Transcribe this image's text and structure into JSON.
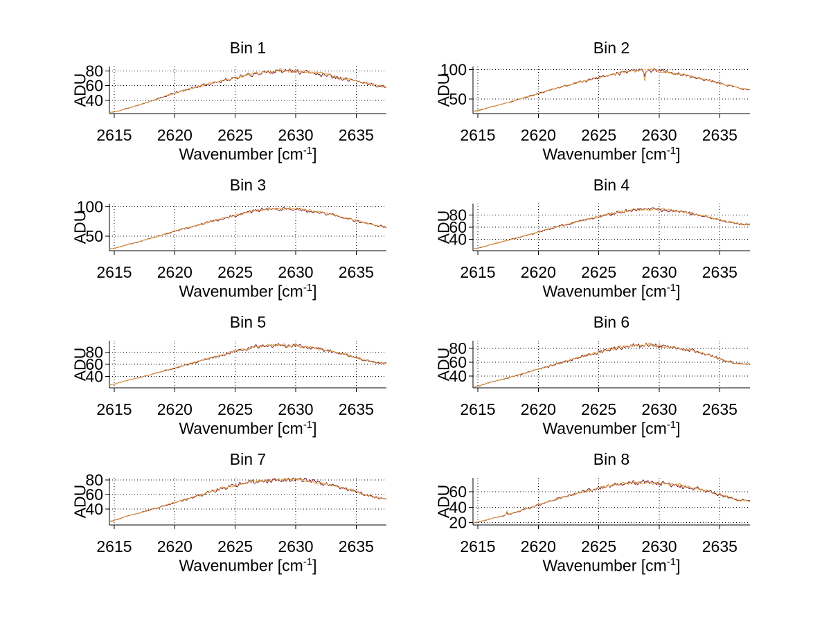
{
  "axis_labels": {
    "y": "ADU",
    "x_base": "Wavenumber [cm",
    "x_sup": "-1",
    "x_close": "]"
  },
  "style": {
    "background": "#ffffff",
    "text_color": "#000000",
    "axis_color": "#000000",
    "grid_color": "#000000",
    "trace_orange": "#e09a38",
    "trace_dark": "#7a2235"
  },
  "chart_data": [
    {
      "title": "Bin 1",
      "type": "line",
      "xlabel": "Wavenumber [cm-1]",
      "ylabel": "ADU",
      "xlim": [
        2614.6,
        2637.5
      ],
      "ylim": [
        22,
        86
      ],
      "x_ticks": [
        2615,
        2620,
        2625,
        2630,
        2635
      ],
      "y_ticks": [
        40,
        60,
        80
      ],
      "grid": true,
      "points": [
        [
          2614.6,
          23.5
        ],
        [
          2616,
          29
        ],
        [
          2618,
          39
        ],
        [
          2620,
          50
        ],
        [
          2622,
          59
        ],
        [
          2624,
          67
        ],
        [
          2626,
          74
        ],
        [
          2627.5,
          78.5
        ],
        [
          2629,
          80
        ],
        [
          2630.5,
          79
        ],
        [
          2632,
          76
        ],
        [
          2634,
          70
        ],
        [
          2636,
          63
        ],
        [
          2637.4,
          58.5
        ]
      ],
      "blips": []
    },
    {
      "title": "Bin 2",
      "type": "line",
      "xlabel": "Wavenumber [cm-1]",
      "ylabel": "ADU",
      "xlim": [
        2614.6,
        2637.5
      ],
      "ylim": [
        25,
        105
      ],
      "x_ticks": [
        2615,
        2620,
        2625,
        2630,
        2635
      ],
      "y_ticks": [
        50,
        100
      ],
      "grid": true,
      "points": [
        [
          2614.6,
          29
        ],
        [
          2616,
          36
        ],
        [
          2618,
          47
        ],
        [
          2620,
          59
        ],
        [
          2622,
          71
        ],
        [
          2624,
          81
        ],
        [
          2626,
          91
        ],
        [
          2627.5,
          96
        ],
        [
          2629,
          98.5
        ],
        [
          2630.5,
          96
        ],
        [
          2632,
          91
        ],
        [
          2634,
          82
        ],
        [
          2636,
          72
        ],
        [
          2637.4,
          66
        ]
      ],
      "blips": [
        {
          "x": 2628.8,
          "amp": -19
        }
      ]
    },
    {
      "title": "Bin 3",
      "type": "line",
      "xlabel": "Wavenumber [cm-1]",
      "ylabel": "ADU",
      "xlim": [
        2614.6,
        2637.5
      ],
      "ylim": [
        25,
        105
      ],
      "x_ticks": [
        2615,
        2620,
        2625,
        2630,
        2635
      ],
      "y_ticks": [
        50,
        100
      ],
      "grid": true,
      "points": [
        [
          2614.6,
          28
        ],
        [
          2616,
          35
        ],
        [
          2618,
          46
        ],
        [
          2620,
          58
        ],
        [
          2622,
          69
        ],
        [
          2624,
          80
        ],
        [
          2626,
          90
        ],
        [
          2627.5,
          95
        ],
        [
          2629,
          97
        ],
        [
          2630.5,
          95
        ],
        [
          2632,
          90
        ],
        [
          2634,
          81
        ],
        [
          2636,
          71
        ],
        [
          2637.4,
          66
        ]
      ],
      "blips": []
    },
    {
      "title": "Bin 4",
      "type": "line",
      "xlabel": "Wavenumber [cm-1]",
      "ylabel": "ADU",
      "xlim": [
        2614.6,
        2637.5
      ],
      "ylim": [
        21,
        99
      ],
      "x_ticks": [
        2615,
        2620,
        2625,
        2630,
        2635
      ],
      "y_ticks": [
        40,
        60,
        80
      ],
      "grid": true,
      "points": [
        [
          2614.6,
          24
        ],
        [
          2616,
          31
        ],
        [
          2618,
          41
        ],
        [
          2620,
          52
        ],
        [
          2622,
          63
        ],
        [
          2624,
          73
        ],
        [
          2626,
          82
        ],
        [
          2627.5,
          87
        ],
        [
          2629,
          90
        ],
        [
          2630.5,
          89
        ],
        [
          2632,
          85
        ],
        [
          2634,
          77
        ],
        [
          2636,
          68
        ],
        [
          2637.4,
          64
        ]
      ],
      "blips": []
    },
    {
      "title": "Bin 5",
      "type": "line",
      "xlabel": "Wavenumber [cm-1]",
      "ylabel": "ADU",
      "xlim": [
        2614.6,
        2637.5
      ],
      "ylim": [
        21,
        99
      ],
      "x_ticks": [
        2615,
        2620,
        2625,
        2630,
        2635
      ],
      "y_ticks": [
        40,
        60,
        80
      ],
      "grid": true,
      "points": [
        [
          2614.6,
          26
        ],
        [
          2616,
          33
        ],
        [
          2618,
          43
        ],
        [
          2620,
          54
        ],
        [
          2622,
          65
        ],
        [
          2624,
          76
        ],
        [
          2626,
          86
        ],
        [
          2627.5,
          91
        ],
        [
          2629,
          91.5
        ],
        [
          2630.5,
          89
        ],
        [
          2632,
          85
        ],
        [
          2634,
          77
        ],
        [
          2636,
          66
        ],
        [
          2637.4,
          62
        ]
      ],
      "blips": []
    },
    {
      "title": "Bin 6",
      "type": "line",
      "xlabel": "Wavenumber [cm-1]",
      "ylabel": "ADU",
      "xlim": [
        2614.6,
        2637.5
      ],
      "ylim": [
        23,
        91
      ],
      "x_ticks": [
        2615,
        2620,
        2625,
        2630,
        2635
      ],
      "y_ticks": [
        40,
        60,
        80
      ],
      "grid": true,
      "points": [
        [
          2614.6,
          24
        ],
        [
          2616,
          31
        ],
        [
          2618,
          40
        ],
        [
          2620,
          50
        ],
        [
          2622,
          60
        ],
        [
          2624,
          70
        ],
        [
          2626,
          79
        ],
        [
          2627.5,
          83
        ],
        [
          2629,
          85
        ],
        [
          2630.5,
          83
        ],
        [
          2632,
          79
        ],
        [
          2634,
          71
        ],
        [
          2636,
          60
        ],
        [
          2637.4,
          57
        ]
      ],
      "blips": []
    },
    {
      "title": "Bin 7",
      "type": "line",
      "xlabel": "Wavenumber [cm-1]",
      "ylabel": "ADU",
      "xlim": [
        2614.6,
        2637.5
      ],
      "ylim": [
        18,
        83
      ],
      "x_ticks": [
        2615,
        2620,
        2625,
        2630,
        2635
      ],
      "y_ticks": [
        40,
        60,
        80
      ],
      "grid": true,
      "points": [
        [
          2614.6,
          23
        ],
        [
          2616,
          30
        ],
        [
          2618,
          39
        ],
        [
          2620,
          49
        ],
        [
          2622,
          59
        ],
        [
          2624,
          69
        ],
        [
          2626,
          76
        ],
        [
          2627.5,
          79
        ],
        [
          2629,
          81
        ],
        [
          2630.5,
          80
        ],
        [
          2632,
          76
        ],
        [
          2634,
          69
        ],
        [
          2636,
          59
        ],
        [
          2637.4,
          54
        ]
      ],
      "blips": []
    },
    {
      "title": "Bin 8",
      "type": "line",
      "xlabel": "Wavenumber [cm-1]",
      "ylabel": "ADU",
      "xlim": [
        2614.6,
        2637.5
      ],
      "ylim": [
        17,
        78
      ],
      "x_ticks": [
        2615,
        2620,
        2625,
        2630,
        2635
      ],
      "y_ticks": [
        20,
        40,
        60
      ],
      "grid": true,
      "points": [
        [
          2614.6,
          20
        ],
        [
          2616,
          25
        ],
        [
          2618,
          33
        ],
        [
          2620,
          43
        ],
        [
          2622,
          53
        ],
        [
          2624,
          61
        ],
        [
          2626,
          68
        ],
        [
          2627.5,
          71
        ],
        [
          2629,
          72
        ],
        [
          2630.5,
          70
        ],
        [
          2632,
          67
        ],
        [
          2634,
          61
        ],
        [
          2636,
          52
        ],
        [
          2637.4,
          48
        ]
      ],
      "blips": [
        {
          "x": 2617.4,
          "amp": 4.5
        }
      ]
    }
  ]
}
